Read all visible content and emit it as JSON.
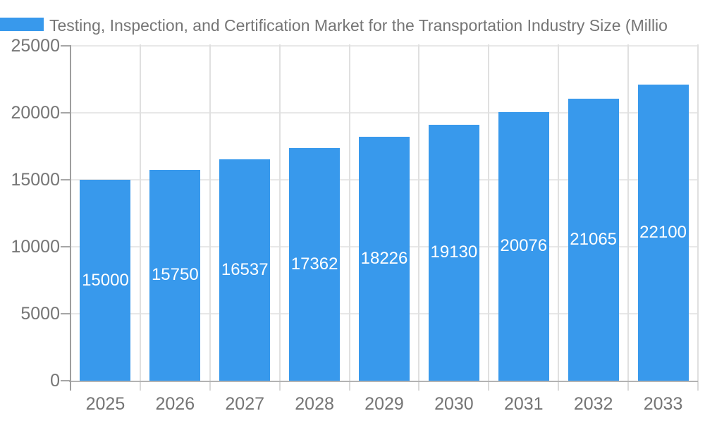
{
  "legend": {
    "label": "Testing, Inspection, and Certification Market for the Transportation Industry Size (Millio"
  },
  "colors": {
    "bar": "#3899ec",
    "text": "#757575",
    "bar_label": "#ffffff",
    "grid_h": "#e8e8e8",
    "grid_v": "#e0e0e0",
    "y_axis_line": "#9e9e9e",
    "x_axis_line": "#b3b3b3",
    "y_tick": "#a6a6a6",
    "x_tick": "#d9d9d9",
    "background": "#ffffff"
  },
  "chart_data": {
    "type": "bar",
    "title": "Testing, Inspection, and Certification Market for the Transportation Industry Size (Millio",
    "series_name": "Testing, Inspection, and Certification Market for the Transportation Industry Size (Millio",
    "categories": [
      "2025",
      "2026",
      "2027",
      "2028",
      "2029",
      "2030",
      "2031",
      "2032",
      "2033"
    ],
    "values": [
      15000,
      15750,
      16537,
      17362,
      18226,
      19130,
      20076,
      21065,
      22100
    ],
    "data_labels": [
      "15000",
      "15750",
      "16537",
      "17362",
      "18226",
      "19130",
      "20076",
      "21065",
      "22100"
    ],
    "xlabel": "",
    "ylabel": "",
    "ylim": [
      0,
      25000
    ],
    "y_ticks": [
      "0",
      "5000",
      "10000",
      "15000",
      "20000",
      "25000"
    ],
    "grid": true,
    "legend_position": "top-left",
    "data_label_style": "inside-center-white"
  }
}
